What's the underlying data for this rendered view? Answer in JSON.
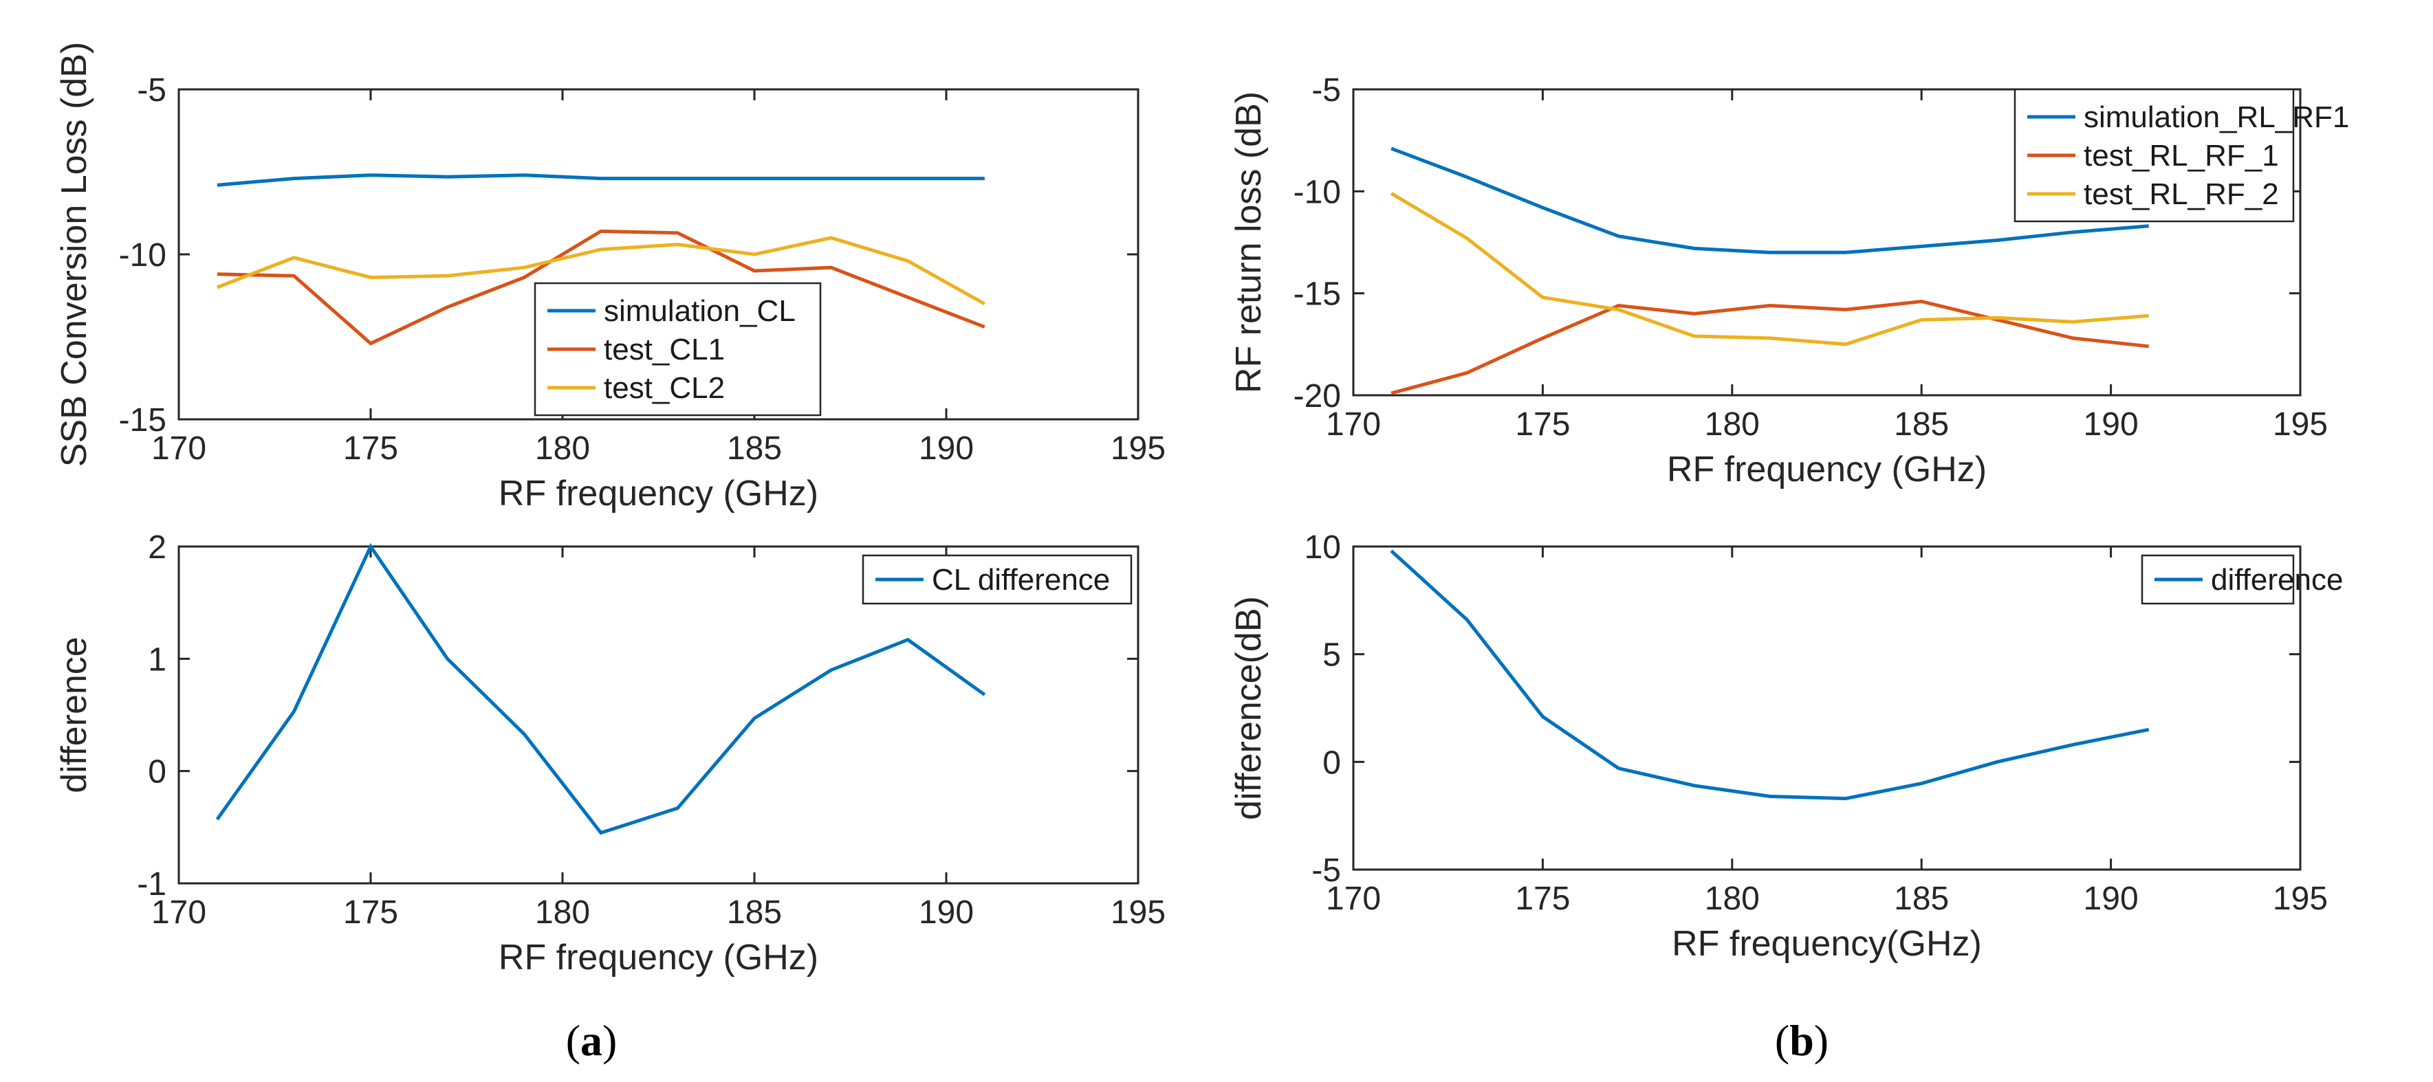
{
  "chart_data": [
    {
      "type": "line",
      "panel": "a",
      "position": "top-left",
      "x": [
        171,
        173,
        175,
        177,
        179,
        181,
        183,
        185,
        187,
        189,
        191
      ],
      "series": [
        {
          "name": "simulation_CL",
          "values": [
            -7.9,
            -7.7,
            -7.6,
            -7.65,
            -7.6,
            -7.7,
            -7.7,
            -7.7,
            -7.7,
            -7.7,
            -7.7
          ]
        },
        {
          "name": "test_CL1",
          "values": [
            -10.6,
            -10.65,
            -12.7,
            -11.6,
            -10.7,
            -9.3,
            -9.35,
            -10.5,
            -10.4,
            -11.3,
            -12.2
          ]
        },
        {
          "name": "test_CL2",
          "values": [
            -11.0,
            -10.1,
            -10.7,
            -10.65,
            -10.4,
            -9.85,
            -9.7,
            -10.0,
            -9.5,
            -10.2,
            -11.5
          ]
        }
      ],
      "xlabel": "RF frequency (GHz)",
      "ylabel": "SSB Conversion Loss (dB)",
      "xlim": [
        170,
        195
      ],
      "ylim": [
        -15,
        -5
      ],
      "xticks": [
        170,
        175,
        180,
        185,
        190,
        195
      ],
      "yticks": [
        -15,
        -10,
        -5
      ],
      "legend": "center"
    },
    {
      "type": "line",
      "panel": "a",
      "position": "bottom-left",
      "x": [
        171,
        173,
        175,
        177,
        179,
        181,
        183,
        185,
        187,
        189,
        191
      ],
      "series": [
        {
          "name": "CL difference",
          "values": [
            -0.43,
            0.53,
            2.0,
            1.0,
            0.33,
            -0.55,
            -0.33,
            0.47,
            0.9,
            1.17,
            0.68
          ]
        }
      ],
      "xlabel": "RF frequency (GHz)",
      "ylabel": "difference",
      "xlim": [
        170,
        195
      ],
      "ylim": [
        -1,
        2
      ],
      "xticks": [
        170,
        175,
        180,
        185,
        190,
        195
      ],
      "yticks": [
        -1,
        0,
        1,
        2
      ],
      "legend": "top-right"
    },
    {
      "type": "line",
      "panel": "b",
      "position": "top-right",
      "x": [
        171,
        173,
        175,
        177,
        179,
        181,
        183,
        185,
        187,
        189,
        191
      ],
      "series": [
        {
          "name": "simulation_RL_RF1",
          "values": [
            -7.9,
            -9.3,
            -10.8,
            -12.2,
            -12.8,
            -13.0,
            -13.0,
            -12.7,
            -12.4,
            -12.0,
            -11.7
          ]
        },
        {
          "name": "test_RL_RF_1",
          "values": [
            -19.9,
            -18.9,
            -17.2,
            -15.6,
            -16.0,
            -15.6,
            -15.8,
            -15.4,
            -16.3,
            -17.2,
            -17.6
          ]
        },
        {
          "name": "test_RL_RF_2",
          "values": [
            -10.1,
            -12.3,
            -15.2,
            -15.8,
            -17.1,
            -17.2,
            -17.5,
            -16.3,
            -16.2,
            -16.4,
            -16.1
          ]
        }
      ],
      "xlabel": "RF frequency (GHz)",
      "ylabel": "RF return loss (dB)",
      "xlim": [
        170,
        195
      ],
      "ylim": [
        -20,
        -5
      ],
      "xticks": [
        170,
        175,
        180,
        185,
        190,
        195
      ],
      "yticks": [
        -20,
        -15,
        -10,
        -5
      ],
      "legend": "top-right"
    },
    {
      "type": "line",
      "panel": "b",
      "position": "bottom-right",
      "x": [
        171,
        173,
        175,
        177,
        179,
        181,
        183,
        185,
        187,
        189,
        191
      ],
      "series": [
        {
          "name": "difference",
          "values": [
            9.8,
            6.6,
            2.1,
            -0.3,
            -1.1,
            -1.6,
            -1.7,
            -1.0,
            0.0,
            0.8,
            1.5
          ]
        }
      ],
      "xlabel": "RF frequency(GHz)",
      "ylabel": "difference(dB)",
      "xlim": [
        170,
        195
      ],
      "ylim": [
        -5,
        10
      ],
      "xticks": [
        170,
        175,
        180,
        185,
        190,
        195
      ],
      "yticks": [
        -5,
        0,
        5,
        10
      ],
      "legend": "top-right"
    }
  ],
  "panel_labels": {
    "a": "a",
    "b": "b"
  },
  "colors": [
    "#0072BD",
    "#D95319",
    "#EDB120"
  ]
}
